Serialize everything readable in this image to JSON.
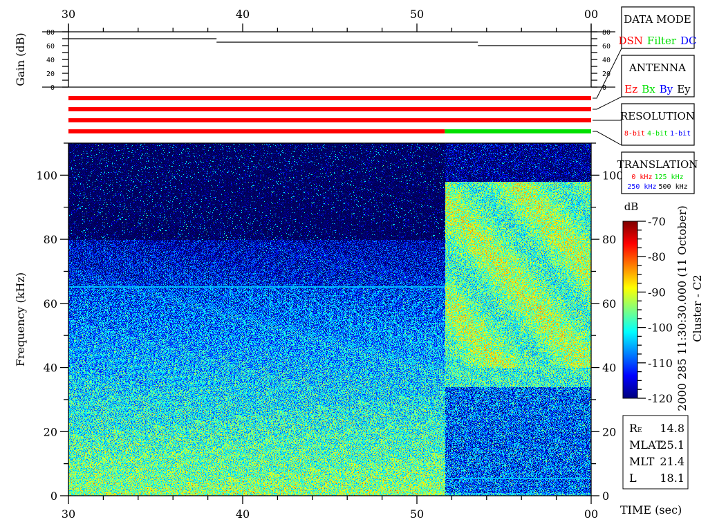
{
  "chart_data": {
    "type": "heatmap",
    "title": "2000 285 11:30:30.000 (11 October)",
    "subtitle": "Cluster - C2",
    "xlabel": "TIME (sec)",
    "ylabel": "Frequency (kHz)",
    "xlim": [
      30,
      60
    ],
    "ylim": [
      0,
      110
    ],
    "x_ticks": [
      "30",
      "40",
      "50",
      "00"
    ],
    "y_ticks": [
      "0",
      "20",
      "40",
      "60",
      "80",
      "100"
    ],
    "colorbar": {
      "label": "dB",
      "range": [
        -120,
        -70
      ],
      "ticks": [
        "-70",
        "-80",
        "-90",
        "-100",
        "-110",
        "-120"
      ],
      "colormap": "jet"
    },
    "mode_change_time_sec": 51.6,
    "features": [
      {
        "kind": "horizontal-line",
        "frequency_khz": 65,
        "time_range": [
          30,
          51.6
        ]
      },
      {
        "kind": "horizontal-line",
        "frequency_khz": 5.5,
        "time_range": [
          51.6,
          60
        ]
      }
    ],
    "gain_panel": {
      "ylabel": "Gain (dB)",
      "ylim": [
        0,
        80
      ],
      "y_ticks": [
        "0",
        "20",
        "40",
        "60",
        "80"
      ],
      "series": [
        {
          "time_range": [
            30,
            38.5
          ],
          "gain": 70
        },
        {
          "time_range": [
            38.5,
            53.5
          ],
          "gain": 65
        },
        {
          "time_range": [
            53.5,
            60
          ],
          "gain": 60
        }
      ]
    },
    "status_bars": [
      {
        "panel": "DATA MODE",
        "segments": [
          {
            "time_range": [
              30,
              60
            ],
            "color": "#ff0000"
          }
        ]
      },
      {
        "panel": "ANTENNA",
        "segments": [
          {
            "time_range": [
              30,
              60
            ],
            "color": "#ff0000"
          }
        ]
      },
      {
        "panel": "RESOLUTION",
        "segments": [
          {
            "time_range": [
              30,
              60
            ],
            "color": "#ff0000"
          }
        ]
      },
      {
        "panel": "TRANSLATION",
        "segments": [
          {
            "time_range": [
              30,
              51.6
            ],
            "color": "#ff0000"
          },
          {
            "time_range": [
              51.6,
              60
            ],
            "color": "#00e000"
          }
        ]
      }
    ]
  },
  "legend_boxes": [
    {
      "title": "DATA MODE",
      "items": [
        {
          "text": "DSN",
          "color": "#ff0000"
        },
        {
          "text": "Filter",
          "color": "#00e000"
        },
        {
          "text": "DC",
          "color": "#0000ff"
        }
      ]
    },
    {
      "title": "ANTENNA",
      "items": [
        {
          "text": "Ez",
          "color": "#ff0000"
        },
        {
          "text": "Bx",
          "color": "#00e000"
        },
        {
          "text": "By",
          "color": "#0000ff"
        },
        {
          "text": "Ey",
          "color": "#000000"
        }
      ]
    },
    {
      "title": "RESOLUTION",
      "items": [
        {
          "text": "8-bit",
          "color": "#ff0000"
        },
        {
          "text": "4-bit",
          "color": "#00e000"
        },
        {
          "text": "1-bit",
          "color": "#0000ff"
        }
      ]
    },
    {
      "title": "TRANSLATION",
      "items": [
        {
          "text": "0 kHz",
          "color": "#ff0000"
        },
        {
          "text": "125 kHz",
          "color": "#00e000"
        },
        {
          "text": "250 kHz",
          "color": "#0000ff"
        },
        {
          "text": "500 kHz",
          "color": "#000000"
        }
      ]
    }
  ],
  "orbit": {
    "rows": [
      {
        "label": "RE",
        "value": "14.8"
      },
      {
        "label": "MLAT",
        "value": "25.1"
      },
      {
        "label": "MLT",
        "value": "21.4"
      },
      {
        "label": "L",
        "value": "18.1"
      }
    ]
  }
}
